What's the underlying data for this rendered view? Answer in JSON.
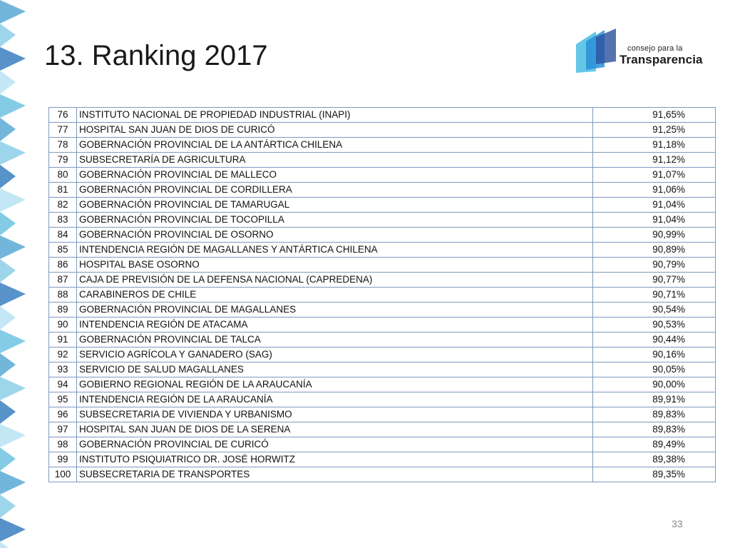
{
  "slide": {
    "title": "13. Ranking 2017",
    "page_number": "33"
  },
  "logo": {
    "line1": "consejo para la",
    "line2": "Transparencia",
    "colors": [
      "#2a8fd6",
      "#54c1e6",
      "#2b4f9e"
    ]
  },
  "decoration": {
    "colors": [
      "#5aa9d6",
      "#8ccfe8",
      "#3a7fbf",
      "#b8e3f2",
      "#6fc3e0"
    ]
  },
  "table": {
    "border_color": "#7f98c1",
    "rows": [
      {
        "rank": "76",
        "name": "INSTITUTO NACIONAL DE PROPIEDAD INDUSTRIAL (INAPI)",
        "pct": "91,65%"
      },
      {
        "rank": "77",
        "name": "HOSPITAL SAN JUAN DE DIOS DE CURICÓ",
        "pct": "91,25%"
      },
      {
        "rank": "78",
        "name": "GOBERNACIÓN PROVINCIAL DE LA ANTÁRTICA CHILENA",
        "pct": "91,18%"
      },
      {
        "rank": "79",
        "name": "SUBSECRETARÍA DE AGRICULTURA",
        "pct": "91,12%"
      },
      {
        "rank": "80",
        "name": "GOBERNACIÓN PROVINCIAL DE MALLECO",
        "pct": "91,07%"
      },
      {
        "rank": "81",
        "name": "GOBERNACIÓN PROVINCIAL DE CORDILLERA",
        "pct": "91,06%"
      },
      {
        "rank": "82",
        "name": "GOBERNACIÓN PROVINCIAL DE TAMARUGAL",
        "pct": "91,04%"
      },
      {
        "rank": "83",
        "name": "GOBERNACIÓN PROVINCIAL DE TOCOPILLA",
        "pct": "91,04%"
      },
      {
        "rank": "84",
        "name": "GOBERNACIÓN PROVINCIAL DE OSORNO",
        "pct": "90,99%"
      },
      {
        "rank": "85",
        "name": "INTENDENCIA REGIÓN DE MAGALLANES Y ANTÁRTICA CHILENA",
        "pct": "90,89%"
      },
      {
        "rank": "86",
        "name": "HOSPITAL BASE OSORNO",
        "pct": "90,79%"
      },
      {
        "rank": "87",
        "name": "CAJA DE PREVISIÓN DE LA DEFENSA NACIONAL (CAPREDENA)",
        "pct": "90,77%"
      },
      {
        "rank": "88",
        "name": "CARABINEROS DE CHILE",
        "pct": "90,71%"
      },
      {
        "rank": "89",
        "name": "GOBERNACIÓN PROVINCIAL DE MAGALLANES",
        "pct": "90,54%"
      },
      {
        "rank": "90",
        "name": "INTENDENCIA REGIÓN DE ATACAMA",
        "pct": "90,53%"
      },
      {
        "rank": "91",
        "name": "GOBERNACIÓN PROVINCIAL DE TALCA",
        "pct": "90,44%"
      },
      {
        "rank": "92",
        "name": "SERVICIO AGRÍCOLA Y GANADERO (SAG)",
        "pct": "90,16%"
      },
      {
        "rank": "93",
        "name": "SERVICIO DE SALUD MAGALLANES",
        "pct": "90,05%"
      },
      {
        "rank": "94",
        "name": "GOBIERNO REGIONAL REGIÓN DE LA ARAUCANÍA",
        "pct": "90,00%"
      },
      {
        "rank": "95",
        "name": "INTENDENCIA REGIÓN DE LA ARAUCANÍA",
        "pct": "89,91%"
      },
      {
        "rank": "96",
        "name": "SUBSECRETARIA DE VIVIENDA Y URBANISMO",
        "pct": "89,83%"
      },
      {
        "rank": "97",
        "name": "HOSPITAL SAN JUAN DE DIOS DE LA SERENA",
        "pct": "89,83%"
      },
      {
        "rank": "98",
        "name": "GOBERNACIÓN PROVINCIAL DE CURICÓ",
        "pct": "89,49%"
      },
      {
        "rank": "99",
        "name": "INSTITUTO PSIQUIATRICO DR. JOSÉ HORWITZ",
        "pct": "89,38%"
      },
      {
        "rank": "100",
        "name": "SUBSECRETARIA DE TRANSPORTES",
        "pct": "89,35%"
      }
    ]
  }
}
